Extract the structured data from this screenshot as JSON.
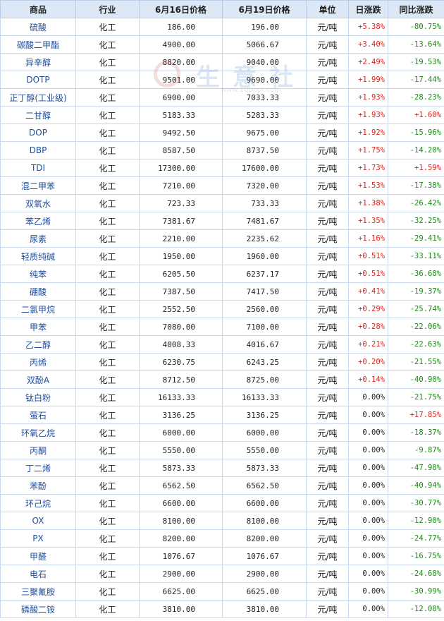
{
  "headers": [
    "商品",
    "行业",
    "6月16日价格",
    "6月19日价格",
    "单位",
    "日涨跌",
    "同比涨跌"
  ],
  "colors": {
    "up": "#e0211c",
    "down": "#1a8a12",
    "flat": "#1e1e1e",
    "header_bg": "#dce8f6",
    "name_text": "#1f4e9a"
  },
  "watermark": {
    "text": "生意社",
    "url": "www.100ppi.com"
  },
  "rows": [
    {
      "name": "硫酸",
      "industry": "化工",
      "p16": "186.00",
      "p19": "196.00",
      "unit": "元/吨",
      "day": "+5.38%",
      "yoy": "-80.75%"
    },
    {
      "name": "碳酸二甲酯",
      "industry": "化工",
      "p16": "4900.00",
      "p19": "5066.67",
      "unit": "元/吨",
      "day": "+3.40%",
      "yoy": "-13.64%"
    },
    {
      "name": "异辛醇",
      "industry": "化工",
      "p16": "8820.00",
      "p19": "9040.00",
      "unit": "元/吨",
      "day": "+2.49%",
      "yoy": "-19.53%"
    },
    {
      "name": "DOTP",
      "industry": "化工",
      "p16": "9501.00",
      "p19": "9690.00",
      "unit": "元/吨",
      "day": "+1.99%",
      "yoy": "-17.44%"
    },
    {
      "name": "正丁醇(工业级)",
      "industry": "化工",
      "p16": "6900.00",
      "p19": "7033.33",
      "unit": "元/吨",
      "day": "+1.93%",
      "yoy": "-28.23%"
    },
    {
      "name": "二甘醇",
      "industry": "化工",
      "p16": "5183.33",
      "p19": "5283.33",
      "unit": "元/吨",
      "day": "+1.93%",
      "yoy": "+1.60%"
    },
    {
      "name": "DOP",
      "industry": "化工",
      "p16": "9492.50",
      "p19": "9675.00",
      "unit": "元/吨",
      "day": "+1.92%",
      "yoy": "-15.96%"
    },
    {
      "name": "DBP",
      "industry": "化工",
      "p16": "8587.50",
      "p19": "8737.50",
      "unit": "元/吨",
      "day": "+1.75%",
      "yoy": "-14.20%"
    },
    {
      "name": "TDI",
      "industry": "化工",
      "p16": "17300.00",
      "p19": "17600.00",
      "unit": "元/吨",
      "day": "+1.73%",
      "yoy": "+1.59%"
    },
    {
      "name": "混二甲苯",
      "industry": "化工",
      "p16": "7210.00",
      "p19": "7320.00",
      "unit": "元/吨",
      "day": "+1.53%",
      "yoy": "-17.38%"
    },
    {
      "name": "双氧水",
      "industry": "化工",
      "p16": "723.33",
      "p19": "733.33",
      "unit": "元/吨",
      "day": "+1.38%",
      "yoy": "-26.42%"
    },
    {
      "name": "苯乙烯",
      "industry": "化工",
      "p16": "7381.67",
      "p19": "7481.67",
      "unit": "元/吨",
      "day": "+1.35%",
      "yoy": "-32.25%"
    },
    {
      "name": "尿素",
      "industry": "化工",
      "p16": "2210.00",
      "p19": "2235.62",
      "unit": "元/吨",
      "day": "+1.16%",
      "yoy": "-29.41%"
    },
    {
      "name": "轻质纯碱",
      "industry": "化工",
      "p16": "1950.00",
      "p19": "1960.00",
      "unit": "元/吨",
      "day": "+0.51%",
      "yoy": "-33.11%"
    },
    {
      "name": "纯苯",
      "industry": "化工",
      "p16": "6205.50",
      "p19": "6237.17",
      "unit": "元/吨",
      "day": "+0.51%",
      "yoy": "-36.68%"
    },
    {
      "name": "硼酸",
      "industry": "化工",
      "p16": "7387.50",
      "p19": "7417.50",
      "unit": "元/吨",
      "day": "+0.41%",
      "yoy": "-19.37%"
    },
    {
      "name": "二氯甲烷",
      "industry": "化工",
      "p16": "2552.50",
      "p19": "2560.00",
      "unit": "元/吨",
      "day": "+0.29%",
      "yoy": "-25.74%"
    },
    {
      "name": "甲苯",
      "industry": "化工",
      "p16": "7080.00",
      "p19": "7100.00",
      "unit": "元/吨",
      "day": "+0.28%",
      "yoy": "-22.06%"
    },
    {
      "name": "乙二醇",
      "industry": "化工",
      "p16": "4008.33",
      "p19": "4016.67",
      "unit": "元/吨",
      "day": "+0.21%",
      "yoy": "-22.63%"
    },
    {
      "name": "丙烯",
      "industry": "化工",
      "p16": "6230.75",
      "p19": "6243.25",
      "unit": "元/吨",
      "day": "+0.20%",
      "yoy": "-21.55%"
    },
    {
      "name": "双酚A",
      "industry": "化工",
      "p16": "8712.50",
      "p19": "8725.00",
      "unit": "元/吨",
      "day": "+0.14%",
      "yoy": "-40.90%"
    },
    {
      "name": "钛白粉",
      "industry": "化工",
      "p16": "16133.33",
      "p19": "16133.33",
      "unit": "元/吨",
      "day": "0.00%",
      "yoy": "-21.75%"
    },
    {
      "name": "萤石",
      "industry": "化工",
      "p16": "3136.25",
      "p19": "3136.25",
      "unit": "元/吨",
      "day": "0.00%",
      "yoy": "+17.85%"
    },
    {
      "name": "环氧乙烷",
      "industry": "化工",
      "p16": "6000.00",
      "p19": "6000.00",
      "unit": "元/吨",
      "day": "0.00%",
      "yoy": "-18.37%"
    },
    {
      "name": "丙酮",
      "industry": "化工",
      "p16": "5550.00",
      "p19": "5550.00",
      "unit": "元/吨",
      "day": "0.00%",
      "yoy": "-9.87%"
    },
    {
      "name": "丁二烯",
      "industry": "化工",
      "p16": "5873.33",
      "p19": "5873.33",
      "unit": "元/吨",
      "day": "0.00%",
      "yoy": "-47.98%"
    },
    {
      "name": "苯酚",
      "industry": "化工",
      "p16": "6562.50",
      "p19": "6562.50",
      "unit": "元/吨",
      "day": "0.00%",
      "yoy": "-40.94%"
    },
    {
      "name": "环己烷",
      "industry": "化工",
      "p16": "6600.00",
      "p19": "6600.00",
      "unit": "元/吨",
      "day": "0.00%",
      "yoy": "-30.77%"
    },
    {
      "name": "OX",
      "industry": "化工",
      "p16": "8100.00",
      "p19": "8100.00",
      "unit": "元/吨",
      "day": "0.00%",
      "yoy": "-12.90%"
    },
    {
      "name": "PX",
      "industry": "化工",
      "p16": "8200.00",
      "p19": "8200.00",
      "unit": "元/吨",
      "day": "0.00%",
      "yoy": "-24.77%"
    },
    {
      "name": "甲醛",
      "industry": "化工",
      "p16": "1076.67",
      "p19": "1076.67",
      "unit": "元/吨",
      "day": "0.00%",
      "yoy": "-16.75%"
    },
    {
      "name": "电石",
      "industry": "化工",
      "p16": "2900.00",
      "p19": "2900.00",
      "unit": "元/吨",
      "day": "0.00%",
      "yoy": "-24.68%"
    },
    {
      "name": "三聚氰胺",
      "industry": "化工",
      "p16": "6625.00",
      "p19": "6625.00",
      "unit": "元/吨",
      "day": "0.00%",
      "yoy": "-30.99%"
    },
    {
      "name": "磷酸二铵",
      "industry": "化工",
      "p16": "3810.00",
      "p19": "3810.00",
      "unit": "元/吨",
      "day": "0.00%",
      "yoy": "-12.08%"
    }
  ]
}
